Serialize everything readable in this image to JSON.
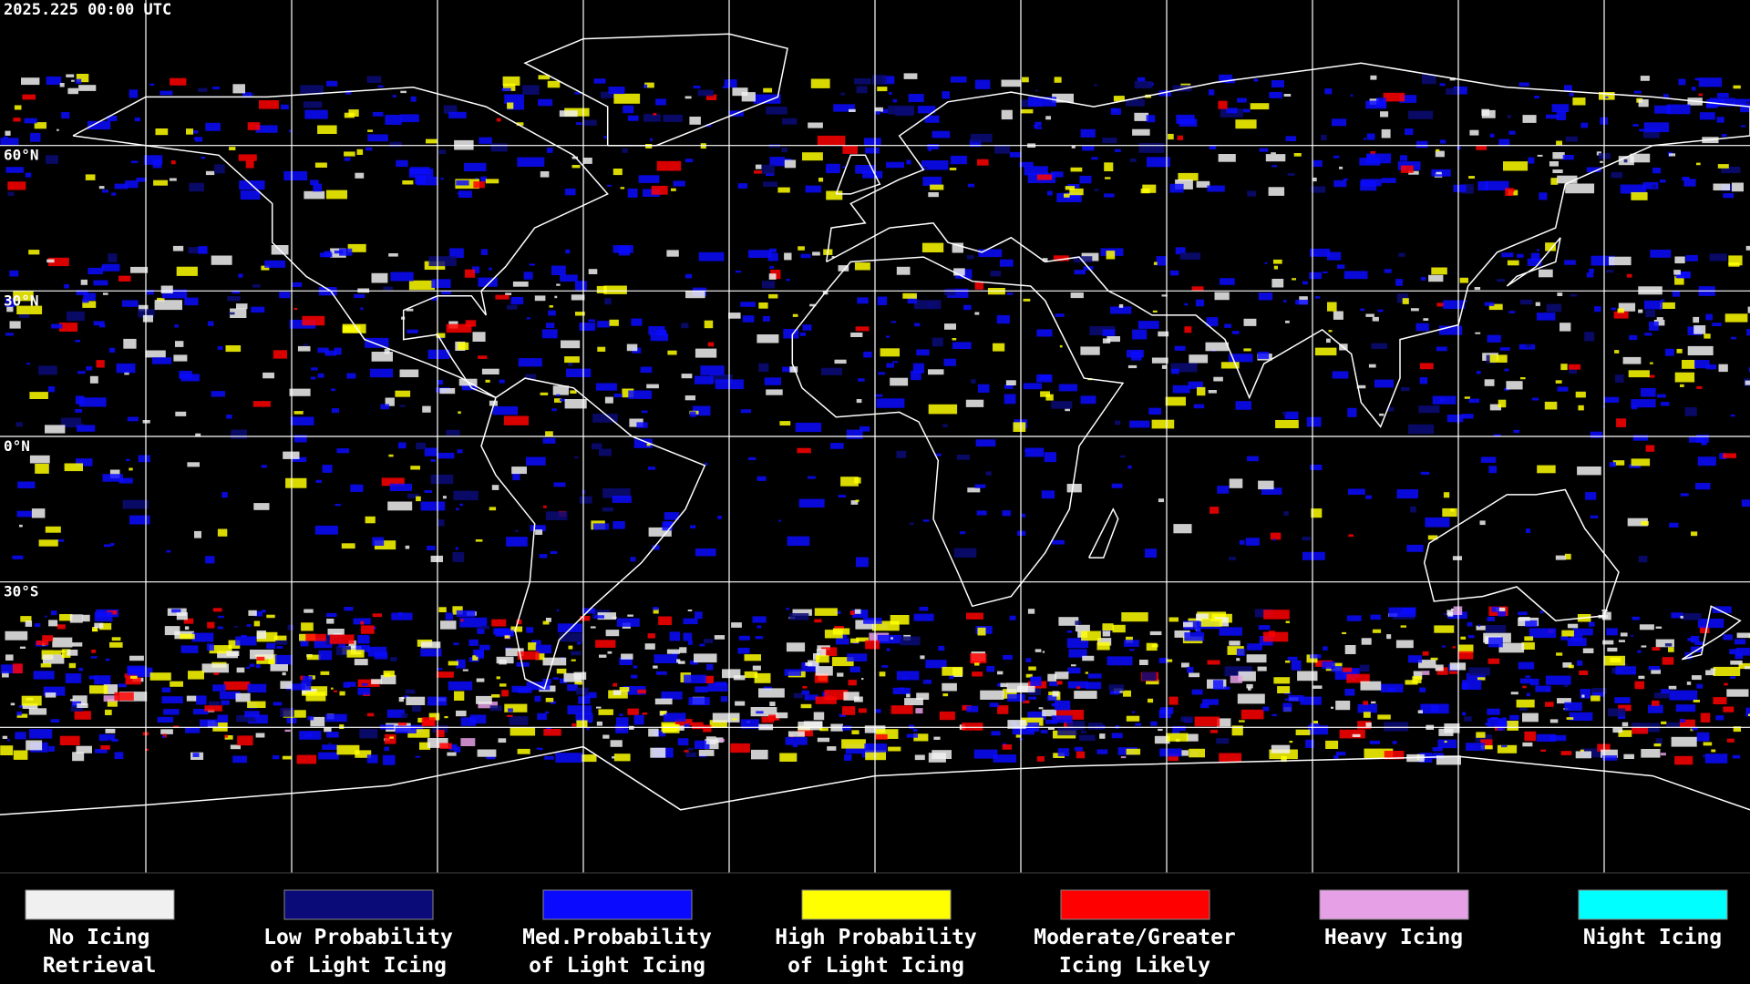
{
  "header": {
    "timestamp": "2025.225 00:00 UTC"
  },
  "latitude_labels": [
    {
      "value": 60,
      "label": "60°N"
    },
    {
      "value": 30,
      "label": "30°N"
    },
    {
      "value": 0,
      "label": "0°N"
    },
    {
      "value": -30,
      "label": "30°S"
    }
  ],
  "legend": [
    {
      "color": "#f0f0f0",
      "label": [
        "No Icing",
        "Retrieval"
      ]
    },
    {
      "color": "#0a0a78",
      "label": [
        "Low Probability",
        "of Light Icing"
      ]
    },
    {
      "color": "#0a0aff",
      "label": [
        "Med.Probability",
        "of Light Icing"
      ]
    },
    {
      "color": "#ffff00",
      "label": [
        "High Probability",
        "of Light Icing"
      ]
    },
    {
      "color": "#ff0000",
      "label": [
        "Moderate/Greater",
        "Icing Likely"
      ]
    },
    {
      "color": "#e6a0e6",
      "label": [
        "Heavy Icing"
      ]
    },
    {
      "color": "#00ffff",
      "label": [
        "Night Icing"
      ]
    }
  ]
}
